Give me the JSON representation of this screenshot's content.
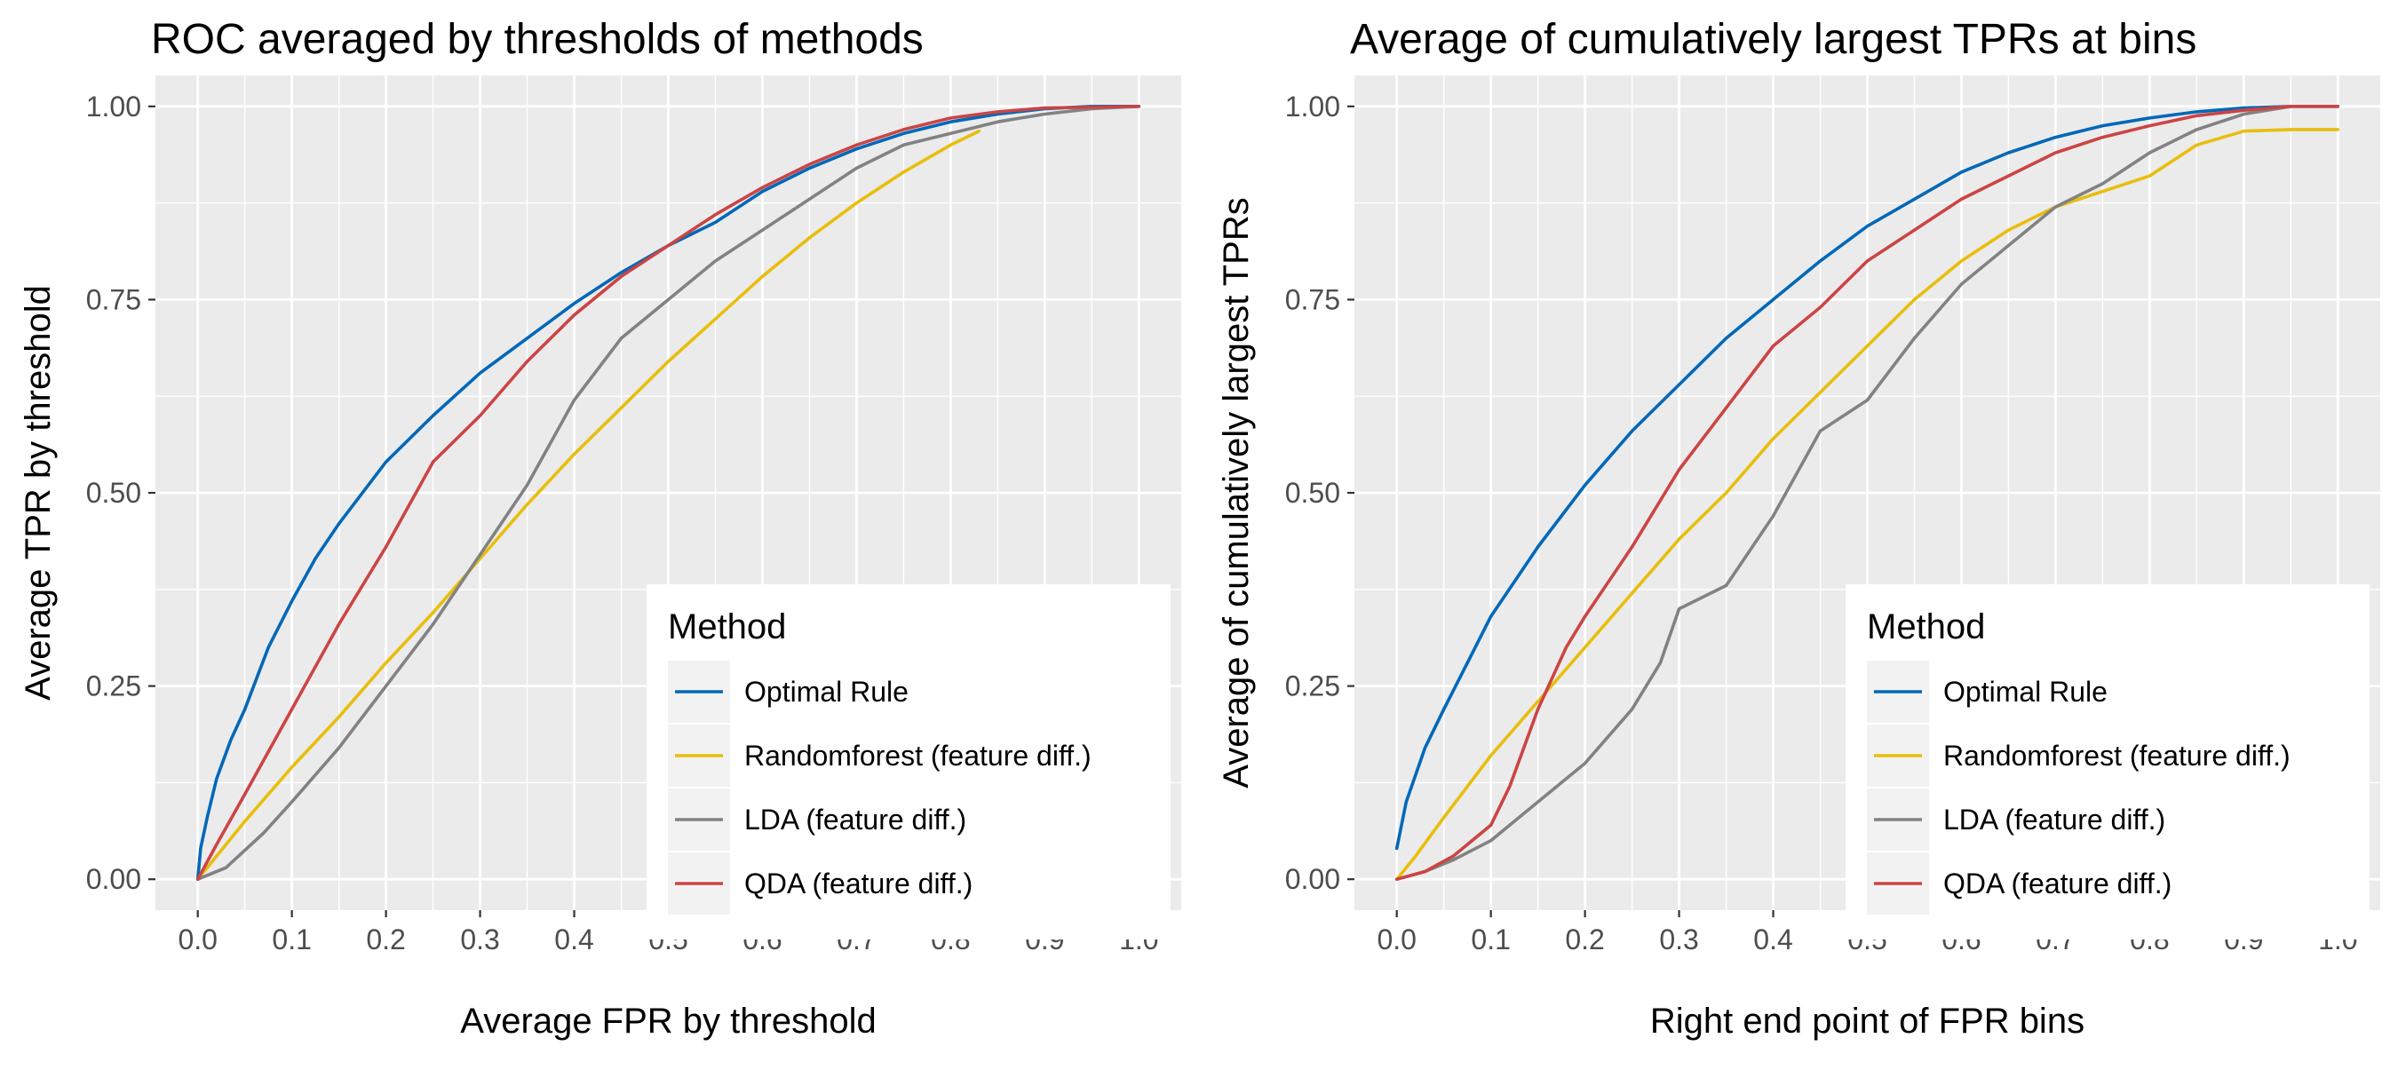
{
  "chart_data": [
    {
      "type": "line",
      "title": "ROC averaged by thresholds of methods",
      "xlabel": "Average FPR by threshold",
      "ylabel": "Average TPR by threshold",
      "xlim": [
        -0.045,
        1.045
      ],
      "ylim": [
        -0.04,
        1.04
      ],
      "x_ticks": [
        0.0,
        0.1,
        0.2,
        0.3,
        0.4,
        0.5,
        0.6,
        0.7,
        0.8,
        0.9,
        1.0
      ],
      "x_tick_labels": [
        "0.0",
        "0.1",
        "0.2",
        "0.3",
        "0.4",
        "0.5",
        "0.6",
        "0.7",
        "0.8",
        "0.9",
        "1.0"
      ],
      "y_ticks": [
        0.0,
        0.25,
        0.5,
        0.75,
        1.0
      ],
      "y_tick_labels": [
        "0.00",
        "0.25",
        "0.50",
        "0.75",
        "1.00"
      ],
      "grid": true,
      "legend": {
        "title": "Method",
        "placement": "bottom-right"
      },
      "series": [
        {
          "name": "Optimal Rule",
          "color": "#0068b8",
          "points": [
            [
              0,
              0
            ],
            [
              0.003,
              0.04
            ],
            [
              0.01,
              0.08
            ],
            [
              0.02,
              0.13
            ],
            [
              0.035,
              0.18
            ],
            [
              0.05,
              0.22
            ],
            [
              0.075,
              0.3
            ],
            [
              0.1,
              0.36
            ],
            [
              0.125,
              0.415
            ],
            [
              0.15,
              0.46
            ],
            [
              0.2,
              0.54
            ],
            [
              0.25,
              0.6
            ],
            [
              0.3,
              0.655
            ],
            [
              0.35,
              0.7
            ],
            [
              0.4,
              0.745
            ],
            [
              0.45,
              0.785
            ],
            [
              0.5,
              0.82
            ],
            [
              0.55,
              0.85
            ],
            [
              0.6,
              0.89
            ],
            [
              0.65,
              0.92
            ],
            [
              0.7,
              0.945
            ],
            [
              0.75,
              0.965
            ],
            [
              0.8,
              0.98
            ],
            [
              0.85,
              0.99
            ],
            [
              0.9,
              0.997
            ],
            [
              0.95,
              1.0
            ],
            [
              1.0,
              1.0
            ]
          ]
        },
        {
          "name": "Randomforest (feature diff.)",
          "color": "#e8be0c",
          "points": [
            [
              0,
              0
            ],
            [
              0.05,
              0.075
            ],
            [
              0.1,
              0.145
            ],
            [
              0.15,
              0.21
            ],
            [
              0.2,
              0.28
            ],
            [
              0.25,
              0.345
            ],
            [
              0.3,
              0.415
            ],
            [
              0.35,
              0.485
            ],
            [
              0.4,
              0.55
            ],
            [
              0.45,
              0.61
            ],
            [
              0.5,
              0.67
            ],
            [
              0.55,
              0.725
            ],
            [
              0.6,
              0.78
            ],
            [
              0.65,
              0.83
            ],
            [
              0.7,
              0.875
            ],
            [
              0.75,
              0.915
            ],
            [
              0.8,
              0.95
            ],
            [
              0.83,
              0.968
            ]
          ]
        },
        {
          "name": "LDA (feature diff.)",
          "color": "#828282",
          "points": [
            [
              0,
              0
            ],
            [
              0.03,
              0.015
            ],
            [
              0.07,
              0.06
            ],
            [
              0.1,
              0.1
            ],
            [
              0.15,
              0.17
            ],
            [
              0.2,
              0.25
            ],
            [
              0.25,
              0.33
            ],
            [
              0.3,
              0.42
            ],
            [
              0.35,
              0.51
            ],
            [
              0.4,
              0.62
            ],
            [
              0.45,
              0.7
            ],
            [
              0.5,
              0.75
            ],
            [
              0.55,
              0.8
            ],
            [
              0.6,
              0.84
            ],
            [
              0.65,
              0.88
            ],
            [
              0.7,
              0.92
            ],
            [
              0.75,
              0.95
            ],
            [
              0.8,
              0.965
            ],
            [
              0.85,
              0.98
            ],
            [
              0.9,
              0.99
            ],
            [
              0.95,
              0.997
            ],
            [
              1.0,
              1.0
            ]
          ]
        },
        {
          "name": "QDA (feature diff.)",
          "color": "#cc4444",
          "points": [
            [
              0,
              0
            ],
            [
              0.02,
              0.045
            ],
            [
              0.05,
              0.11
            ],
            [
              0.1,
              0.22
            ],
            [
              0.15,
              0.33
            ],
            [
              0.2,
              0.43
            ],
            [
              0.25,
              0.54
            ],
            [
              0.3,
              0.6
            ],
            [
              0.35,
              0.67
            ],
            [
              0.4,
              0.73
            ],
            [
              0.45,
              0.78
            ],
            [
              0.5,
              0.82
            ],
            [
              0.55,
              0.86
            ],
            [
              0.6,
              0.895
            ],
            [
              0.65,
              0.925
            ],
            [
              0.7,
              0.95
            ],
            [
              0.75,
              0.97
            ],
            [
              0.8,
              0.985
            ],
            [
              0.85,
              0.993
            ],
            [
              0.9,
              0.998
            ],
            [
              1.0,
              1.0
            ]
          ]
        }
      ]
    },
    {
      "type": "line",
      "title": "Average of cumulatively largest TPRs at bins",
      "xlabel": "Right end point of FPR bins",
      "ylabel": "Average of cumulatively largest TPRs",
      "xlim": [
        -0.045,
        1.045
      ],
      "ylim": [
        -0.04,
        1.04
      ],
      "x_ticks": [
        0.0,
        0.1,
        0.2,
        0.3,
        0.4,
        0.5,
        0.6,
        0.7,
        0.8,
        0.9,
        1.0
      ],
      "x_tick_labels": [
        "0.0",
        "0.1",
        "0.2",
        "0.3",
        "0.4",
        "0.5",
        "0.6",
        "0.7",
        "0.8",
        "0.9",
        "1.0"
      ],
      "y_ticks": [
        0.0,
        0.25,
        0.5,
        0.75,
        1.0
      ],
      "y_tick_labels": [
        "0.00",
        "0.25",
        "0.50",
        "0.75",
        "1.00"
      ],
      "grid": true,
      "legend": {
        "title": "Method",
        "placement": "bottom-right"
      },
      "series": [
        {
          "name": "Optimal Rule",
          "color": "#0068b8",
          "points": [
            [
              0,
              0.04
            ],
            [
              0.01,
              0.1
            ],
            [
              0.03,
              0.17
            ],
            [
              0.05,
              0.22
            ],
            [
              0.075,
              0.28
            ],
            [
              0.1,
              0.34
            ],
            [
              0.125,
              0.385
            ],
            [
              0.15,
              0.43
            ],
            [
              0.2,
              0.51
            ],
            [
              0.25,
              0.58
            ],
            [
              0.3,
              0.64
            ],
            [
              0.35,
              0.7
            ],
            [
              0.4,
              0.75
            ],
            [
              0.45,
              0.8
            ],
            [
              0.5,
              0.845
            ],
            [
              0.55,
              0.88
            ],
            [
              0.6,
              0.915
            ],
            [
              0.65,
              0.94
            ],
            [
              0.7,
              0.96
            ],
            [
              0.75,
              0.975
            ],
            [
              0.8,
              0.985
            ],
            [
              0.85,
              0.993
            ],
            [
              0.9,
              0.998
            ],
            [
              0.95,
              1.0
            ],
            [
              1.0,
              1.0
            ]
          ]
        },
        {
          "name": "Randomforest (feature diff.)",
          "color": "#e8be0c",
          "points": [
            [
              0,
              0
            ],
            [
              0.02,
              0.03
            ],
            [
              0.05,
              0.08
            ],
            [
              0.1,
              0.16
            ],
            [
              0.15,
              0.23
            ],
            [
              0.2,
              0.3
            ],
            [
              0.25,
              0.37
            ],
            [
              0.3,
              0.44
            ],
            [
              0.35,
              0.5
            ],
            [
              0.4,
              0.57
            ],
            [
              0.45,
              0.63
            ],
            [
              0.5,
              0.69
            ],
            [
              0.55,
              0.75
            ],
            [
              0.6,
              0.8
            ],
            [
              0.65,
              0.84
            ],
            [
              0.7,
              0.87
            ],
            [
              0.75,
              0.89
            ],
            [
              0.8,
              0.91
            ],
            [
              0.85,
              0.95
            ],
            [
              0.9,
              0.968
            ],
            [
              0.95,
              0.97
            ],
            [
              1.0,
              0.97
            ]
          ]
        },
        {
          "name": "LDA (feature diff.)",
          "color": "#828282",
          "points": [
            [
              0,
              0
            ],
            [
              0.03,
              0.01
            ],
            [
              0.06,
              0.025
            ],
            [
              0.1,
              0.05
            ],
            [
              0.15,
              0.1
            ],
            [
              0.2,
              0.15
            ],
            [
              0.25,
              0.22
            ],
            [
              0.28,
              0.28
            ],
            [
              0.3,
              0.35
            ],
            [
              0.35,
              0.38
            ],
            [
              0.4,
              0.47
            ],
            [
              0.45,
              0.58
            ],
            [
              0.5,
              0.62
            ],
            [
              0.55,
              0.7
            ],
            [
              0.6,
              0.77
            ],
            [
              0.65,
              0.82
            ],
            [
              0.7,
              0.87
            ],
            [
              0.75,
              0.9
            ],
            [
              0.8,
              0.94
            ],
            [
              0.85,
              0.97
            ],
            [
              0.9,
              0.99
            ],
            [
              0.95,
              1.0
            ],
            [
              1.0,
              1.0
            ]
          ]
        },
        {
          "name": "QDA (feature diff.)",
          "color": "#cc4444",
          "points": [
            [
              0,
              0
            ],
            [
              0.03,
              0.01
            ],
            [
              0.06,
              0.03
            ],
            [
              0.1,
              0.07
            ],
            [
              0.12,
              0.12
            ],
            [
              0.15,
              0.22
            ],
            [
              0.18,
              0.3
            ],
            [
              0.2,
              0.34
            ],
            [
              0.25,
              0.43
            ],
            [
              0.3,
              0.53
            ],
            [
              0.35,
              0.61
            ],
            [
              0.4,
              0.69
            ],
            [
              0.45,
              0.74
            ],
            [
              0.5,
              0.8
            ],
            [
              0.55,
              0.84
            ],
            [
              0.6,
              0.88
            ],
            [
              0.65,
              0.91
            ],
            [
              0.7,
              0.94
            ],
            [
              0.75,
              0.96
            ],
            [
              0.8,
              0.975
            ],
            [
              0.85,
              0.988
            ],
            [
              0.9,
              0.995
            ],
            [
              0.95,
              1.0
            ],
            [
              1.0,
              1.0
            ]
          ]
        }
      ]
    }
  ]
}
